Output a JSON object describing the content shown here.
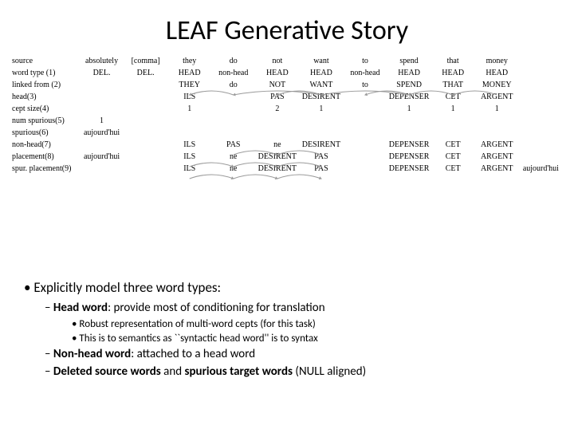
{
  "slide": {
    "title": "LEAF Generative Story",
    "background_color": "#ffffff",
    "text_color": "#000000",
    "title_fontsize": 34
  },
  "table": {
    "font_family": "Times New Roman",
    "cell_fontsize": 10,
    "row_labels": [
      "source",
      "word type (1)",
      "linked from (2)",
      "head(3)",
      "cept size(4)",
      "num spurious(5)",
      "spurious(6)",
      "non-head(7)",
      "placement(8)",
      "spur. placement(9)"
    ],
    "columns": [
      {
        "source": "absolutely",
        "wt": "DEL.",
        "lf": "",
        "hd": "",
        "cs": "",
        "ns": "1",
        "sp": "aujourd'hui",
        "nh": "",
        "pl": "aujourd'hui",
        "spl": ""
      },
      {
        "source": "[comma]",
        "wt": "DEL.",
        "lf": "",
        "hd": "",
        "cs": "",
        "ns": "",
        "sp": "",
        "nh": "",
        "pl": "",
        "spl": ""
      },
      {
        "source": "they",
        "wt": "HEAD",
        "lf": "THEY",
        "hd": "ILS",
        "cs": "1",
        "ns": "",
        "sp": "",
        "nh": "ILS",
        "pl": "ILS",
        "spl": "ILS"
      },
      {
        "source": "do",
        "wt": "non-head",
        "lf": "do",
        "hd": "",
        "cs": "",
        "ns": "",
        "sp": "",
        "nh": "PAS",
        "pl": "ne",
        "spl": "ne"
      },
      {
        "source": "not",
        "wt": "HEAD",
        "lf": "NOT",
        "hd": "PAS",
        "cs": "2",
        "ns": "",
        "sp": "",
        "nh": "ne",
        "pl": "DESIRENT",
        "spl": "DESIRENT"
      },
      {
        "source": "want",
        "wt": "HEAD",
        "lf": "WANT",
        "hd": "DESIRENT",
        "cs": "1",
        "ns": "",
        "sp": "",
        "nh": "DESIRENT",
        "pl": "PAS",
        "spl": "PAS"
      },
      {
        "source": "to",
        "wt": "non-head",
        "lf": "to",
        "hd": "",
        "cs": "",
        "ns": "",
        "sp": "",
        "nh": "",
        "pl": "",
        "spl": ""
      },
      {
        "source": "spend",
        "wt": "HEAD",
        "lf": "SPEND",
        "hd": "DEPENSER",
        "cs": "1",
        "ns": "",
        "sp": "",
        "nh": "DEPENSER",
        "pl": "DEPENSER",
        "spl": "DEPENSER"
      },
      {
        "source": "that",
        "wt": "HEAD",
        "lf": "THAT",
        "hd": "CET",
        "cs": "1",
        "ns": "",
        "sp": "",
        "nh": "CET",
        "pl": "CET",
        "spl": "CET"
      },
      {
        "source": "money",
        "wt": "HEAD",
        "lf": "MONEY",
        "hd": "ARGENT",
        "cs": "1",
        "ns": "",
        "sp": "",
        "nh": "ARGENT",
        "pl": "ARGENT",
        "spl": "ARGENT"
      },
      {
        "source": "",
        "wt": "",
        "lf": "",
        "hd": "",
        "cs": "",
        "ns": "",
        "sp": "",
        "nh": "",
        "pl": "",
        "spl": "aujourd'hui"
      }
    ],
    "arcs": {
      "stroke": "#999999",
      "stroke_width": 1,
      "row2": [
        {
          "from": 3,
          "to": 2
        },
        {
          "from": 5,
          "to": 3
        },
        {
          "from": 5,
          "to": 4
        },
        {
          "from": 7,
          "to": 5
        },
        {
          "from": 7,
          "to": 6
        },
        {
          "from": 8,
          "to": 7
        },
        {
          "from": 9,
          "to": 8
        }
      ],
      "row7": [
        {
          "from": 3,
          "to": 4
        },
        {
          "from": 5,
          "to": 4
        }
      ],
      "row8": [
        {
          "from": 2,
          "to": 3
        },
        {
          "from": 3,
          "to": 4
        },
        {
          "from": 4,
          "to": 5
        }
      ],
      "row9": [
        {
          "from": 2,
          "to": 3
        },
        {
          "from": 3,
          "to": 4
        },
        {
          "from": 4,
          "to": 5
        }
      ]
    }
  },
  "bullets": {
    "lvl1": "Explicitly model three word types:",
    "lvl2a_bold": "Head word",
    "lvl2a_rest": ": provide most of conditioning for translation",
    "lvl3a": "Robust representation of multi-word cepts (for this task)",
    "lvl3b": "This is to semantics as ``syntactic head word'' is to syntax",
    "lvl2b_bold": "Non-head word",
    "lvl2b_rest": ": attached to a head word",
    "lvl2c_bold": "Deleted source words",
    "lvl2c_mid": " and ",
    "lvl2c_bold2": "spurious target words",
    "lvl2c_rest": " (NULL aligned)"
  }
}
